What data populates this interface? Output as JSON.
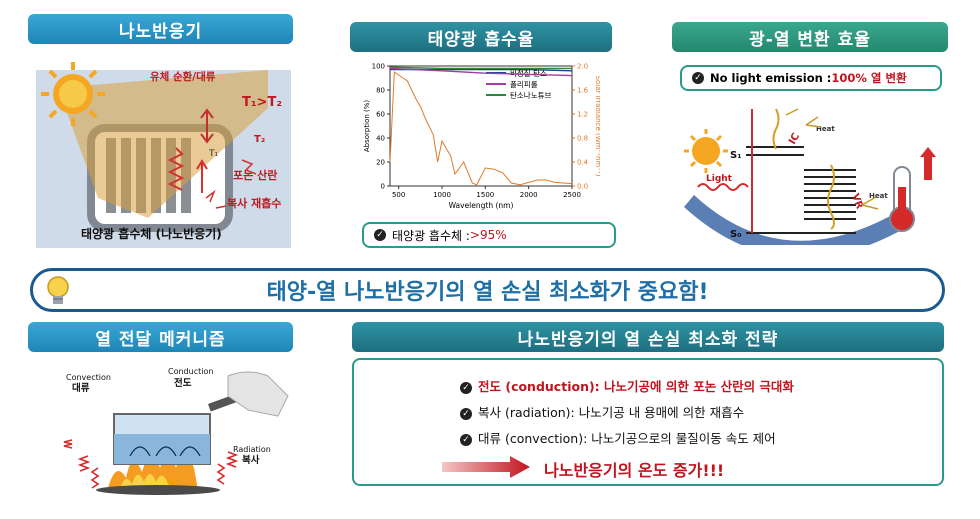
{
  "panels": {
    "reactor": {
      "title": "나노반응기",
      "labels": {
        "flow": "유체 순환/대류",
        "t1t2": "T₁>T₂",
        "t1": "T₁",
        "t2": "T₂",
        "phonon": "포논 산란",
        "reabsorb": "복사 재흡수",
        "caption": "태양광 흡수체 (나노반응기)"
      }
    },
    "absorption": {
      "title": "태양광 흡수율",
      "summary_label": "태양광 흡수체 : ",
      "summary_value": ">95%"
    },
    "conversion": {
      "title": "광-열 변환 효율",
      "note_prefix": "No light emission : ",
      "note_value": "100% 열 변환",
      "labels": {
        "s1": "S₁",
        "s0": "S₀",
        "light": "Light",
        "heat1": "Heat",
        "heat2": "Heat",
        "ic": "IC",
        "vr": "VR"
      }
    },
    "mechanism": {
      "title": "열 전달 메커니즘",
      "labels": {
        "conduction_en": "Conduction",
        "conduction_ko": "전도",
        "convection_en": "Convection",
        "convection_ko": "대류",
        "radiation_en": "Radiation",
        "radiation_ko": "복사"
      }
    },
    "strategy": {
      "title": "나노반응기의 열 손실 최소화 전략",
      "items": [
        "전도 (conduction): 나노기공에 의한 포논 산란의 극대화",
        "복사 (radiation): 나노기공 내 용매에 의한 재흡수",
        "대류 (convection): 나노기공으로의 물질이동 속도 제어"
      ],
      "result": "나노반응기의 온도 증가!!!"
    }
  },
  "banner": {
    "text": "태양-열 나노반응기의 열 손실 최소화가 중요함!"
  },
  "chart_data": {
    "type": "line",
    "xlabel": "Wavelength (nm)",
    "ylabel": "Absorption (%)",
    "y2label": "Solar irradiance (Wm⁻²nm⁻¹)",
    "xlim": [
      400,
      2500
    ],
    "ylim": [
      0,
      100
    ],
    "y2lim": [
      0,
      2.0
    ],
    "x_ticks": [
      500,
      1000,
      1500,
      2000,
      2500
    ],
    "y_ticks": [
      0,
      20,
      40,
      60,
      80,
      100
    ],
    "y2_ticks": [
      0.0,
      0.4,
      0.8,
      1.2,
      1.6,
      2.0
    ],
    "legend_position": "top-right",
    "series": [
      {
        "name": "비정질 탄소",
        "color": "#1f3f9a",
        "axis": "left",
        "x": [
          400,
          1000,
          1500,
          2000,
          2500
        ],
        "y": [
          97,
          97,
          97,
          97,
          96
        ]
      },
      {
        "name": "폴리피롤",
        "color": "#a23ca0",
        "axis": "left",
        "x": [
          400,
          1000,
          1500,
          2000,
          2500
        ],
        "y": [
          98,
          96,
          94,
          93,
          92
        ]
      },
      {
        "name": "탄소나노튜브",
        "color": "#2a8a3c",
        "axis": "left",
        "x": [
          400,
          1000,
          1500,
          2000,
          2500
        ],
        "y": [
          99,
          98,
          98,
          98,
          98
        ]
      },
      {
        "name": "",
        "color": "#e07a2a",
        "axis": "right",
        "x": [
          400,
          450,
          500,
          600,
          700,
          760,
          800,
          900,
          950,
          1000,
          1100,
          1150,
          1250,
          1350,
          1400,
          1500,
          1600,
          1700,
          1800,
          1900,
          2000,
          2100,
          2200,
          2300,
          2400,
          2500
        ],
        "y": [
          0.4,
          1.9,
          1.85,
          1.75,
          1.45,
          1.3,
          1.15,
          0.85,
          0.4,
          0.75,
          0.5,
          0.2,
          0.4,
          0.05,
          0.02,
          0.3,
          0.28,
          0.22,
          0.05,
          0.02,
          0.06,
          0.1,
          0.1,
          0.06,
          0.05,
          0.04
        ]
      }
    ]
  }
}
